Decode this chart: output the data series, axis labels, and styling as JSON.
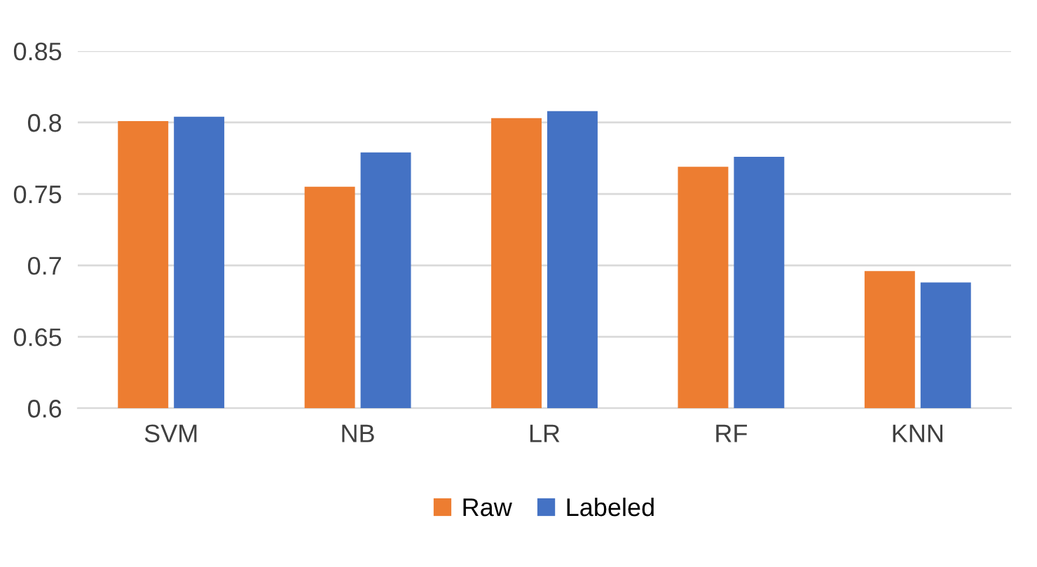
{
  "chart_data": {
    "type": "bar",
    "categories": [
      "SVM",
      "NB",
      "LR",
      "RF",
      "KNN"
    ],
    "series": [
      {
        "name": "Raw",
        "color": "#ed7d31",
        "values": [
          0.801,
          0.755,
          0.803,
          0.769,
          0.696
        ]
      },
      {
        "name": "Labeled",
        "color": "#4472c4",
        "values": [
          0.804,
          0.779,
          0.808,
          0.776,
          0.688
        ]
      }
    ],
    "ylim": [
      0.6,
      0.85
    ],
    "yticks": [
      0.6,
      0.65,
      0.7,
      0.75,
      0.8,
      0.85
    ],
    "grid": "y",
    "legend": "bottom"
  }
}
